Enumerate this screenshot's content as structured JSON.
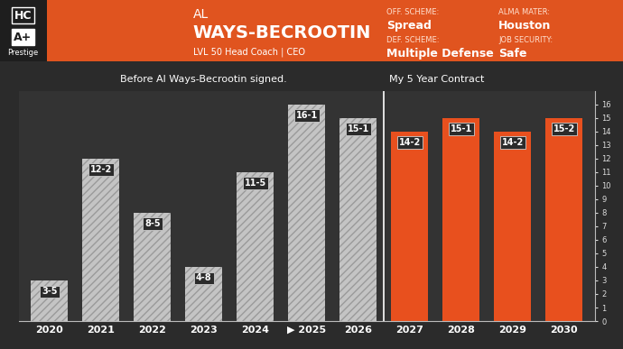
{
  "header": {
    "badge": "HC",
    "grade": "A+",
    "grade_label": "Prestige",
    "first_name": "AL",
    "last_name": "WAYS-BECROOTIN",
    "subtitle": "LVL 50 Head Coach | CEO",
    "fields": [
      {
        "label": "OFF. SCHEME:",
        "value": "Spread"
      },
      {
        "label": "DEF. SCHEME:",
        "value": "Multiple Defense"
      },
      {
        "label": "ALMA MATER:",
        "value": "Houston"
      },
      {
        "label": "JOB SECURITY:",
        "value": "Safe"
      }
    ]
  },
  "chart_data": {
    "type": "bar",
    "annotations": [
      "Before Al Ways-Becrootin signed.",
      "My 5 Year Contract"
    ],
    "categories": [
      "2020",
      "2021",
      "2022",
      "2023",
      "2024",
      "▶ 2025",
      "2026",
      "2027",
      "2028",
      "2029",
      "2030"
    ],
    "values": [
      3,
      12,
      8,
      4,
      11,
      16,
      15,
      14,
      15,
      14,
      15
    ],
    "value_labels": [
      "3-5",
      "12-2",
      "8-5",
      "4-8",
      "11-5",
      "16-1",
      "15-1",
      "14-2",
      "15-1",
      "14-2",
      "15-2"
    ],
    "colors": [
      "#c4c4c4",
      "#c4c4c4",
      "#c4c4c4",
      "#c4c4c4",
      "#c4c4c4",
      "#c4c4c4",
      "#c4c4c4",
      "#e8501e",
      "#e8501e",
      "#e8501e",
      "#e8501e"
    ],
    "ylim": [
      0,
      17
    ],
    "yticks": [
      0,
      1,
      2,
      3,
      4,
      5,
      6,
      7,
      8,
      9,
      10,
      11,
      12,
      13,
      14,
      15,
      16
    ],
    "data_labels": true,
    "grid": false
  }
}
